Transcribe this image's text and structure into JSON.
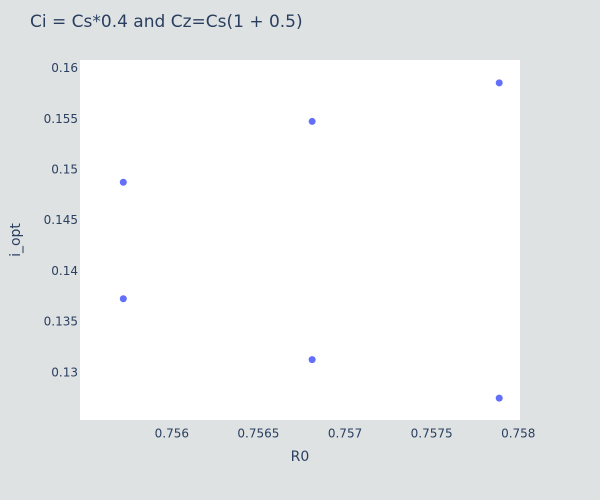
{
  "chart_data": {
    "type": "scatter",
    "title": "Ci = Cs*0.4 and Cz=Cs(1 + 0.5)",
    "xlabel": "R0",
    "ylabel": "i_opt",
    "xlim": [
      0.75547,
      0.75801
    ],
    "ylim": [
      0.12534,
      0.16086
    ],
    "x_ticks": [
      0.756,
      0.7565,
      0.757,
      0.7575,
      0.758
    ],
    "x_tick_labels": [
      "0.756",
      "0.7565",
      "0.757",
      "0.7575",
      "0.758"
    ],
    "y_ticks": [
      0.13,
      0.135,
      0.14,
      0.145,
      0.15,
      0.155,
      0.16
    ],
    "y_tick_labels": [
      "0.13",
      "0.135",
      "0.14",
      "0.145",
      "0.15",
      "0.155",
      "0.16"
    ],
    "grid": false,
    "marker_color": "#636efa",
    "series": [
      {
        "x": [
          0.75572,
          0.75572,
          0.75681,
          0.75681,
          0.75789,
          0.75789
        ],
        "y": [
          0.1488,
          0.1373,
          0.1548,
          0.1313,
          0.1586,
          0.1275
        ]
      }
    ]
  }
}
